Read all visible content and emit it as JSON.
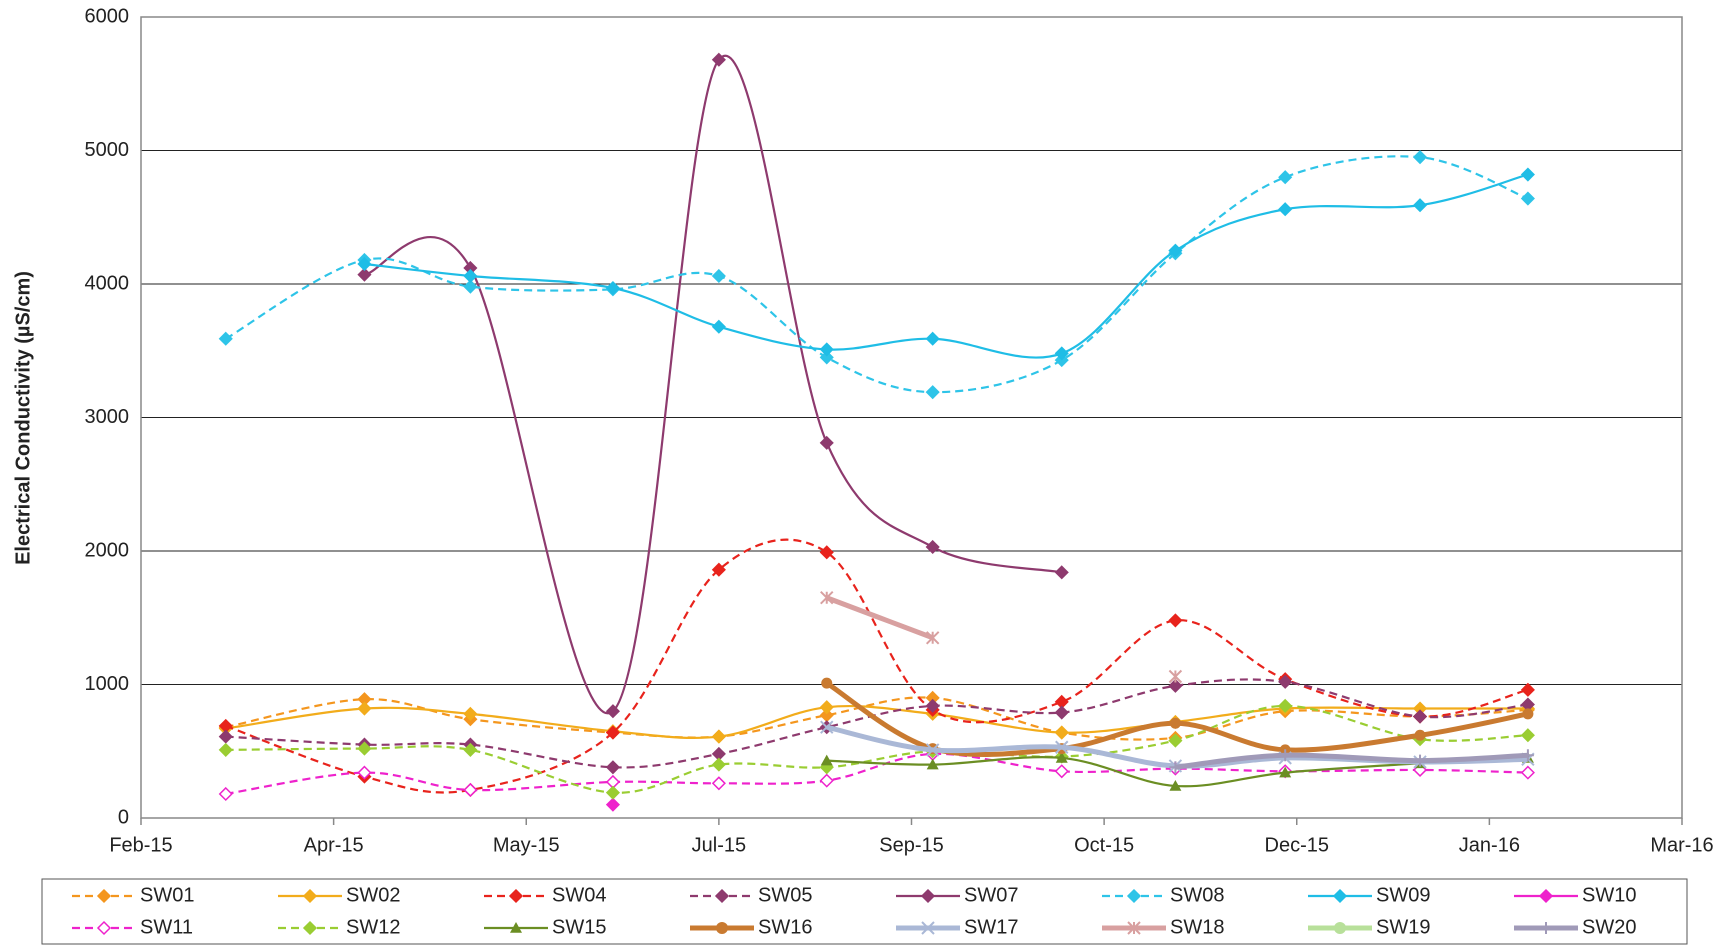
{
  "chart_data": {
    "type": "line",
    "y_label": "Electrical Conductivity (µS/cm)",
    "x": [
      0.44,
      1.16,
      1.71,
      2.45,
      3.0,
      3.56,
      4.11,
      4.78,
      5.37,
      5.94,
      6.64,
      7.2
    ],
    "xlim": [
      0,
      8
    ],
    "xticks": [
      {
        "value": 0,
        "label": "Feb-15"
      },
      {
        "value": 1,
        "label": "Apr-15"
      },
      {
        "value": 2,
        "label": "May-15"
      },
      {
        "value": 3,
        "label": "Jul-15"
      },
      {
        "value": 4,
        "label": "Sep-15"
      },
      {
        "value": 5,
        "label": "Oct-15"
      },
      {
        "value": 6,
        "label": "Dec-15"
      },
      {
        "value": 7,
        "label": "Jan-16"
      },
      {
        "value": 8,
        "label": "Mar-16"
      }
    ],
    "ylim": [
      0,
      6000
    ],
    "yticks": [
      0,
      1000,
      2000,
      3000,
      4000,
      5000,
      6000
    ],
    "grid": true,
    "legend": "bottom",
    "series": [
      {
        "name": "SW01",
        "color": "#f4961e",
        "dash": true,
        "marker": "diamond",
        "values": [
          680,
          890,
          740,
          640,
          610,
          770,
          900,
          640,
          600,
          800,
          760,
          810
        ]
      },
      {
        "name": "SW02",
        "color": "#f2ac1b",
        "dash": false,
        "marker": "diamond",
        "values": [
          670,
          820,
          780,
          650,
          610,
          830,
          780,
          640,
          720,
          820,
          820,
          820
        ]
      },
      {
        "name": "SW04",
        "color": "#e8231c",
        "dash": true,
        "marker": "diamond",
        "values": [
          690,
          310,
          210,
          640,
          1860,
          1990,
          810,
          870,
          1480,
          1040,
          760,
          960
        ]
      },
      {
        "name": "SW05",
        "color": "#8e3a6e",
        "dash": true,
        "marker": "diamond",
        "values": [
          610,
          550,
          550,
          380,
          480,
          680,
          840,
          790,
          990,
          1020,
          760,
          850
        ]
      },
      {
        "name": "SW07",
        "color": "#8e3a6e",
        "dash": false,
        "marker": "diamond",
        "values": [
          null,
          4070,
          4120,
          800,
          5680,
          2810,
          2030,
          1840,
          null,
          null,
          null,
          null
        ]
      },
      {
        "name": "SW08",
        "color": "#2ec4e8",
        "dash": true,
        "marker": "diamond",
        "values": [
          3590,
          4180,
          3980,
          3960,
          4060,
          3450,
          3190,
          3430,
          4230,
          4800,
          4950,
          4640
        ]
      },
      {
        "name": "SW09",
        "color": "#1fbde6",
        "dash": false,
        "marker": "diamond",
        "values": [
          null,
          4150,
          4060,
          3970,
          3680,
          3510,
          3590,
          3480,
          4250,
          4560,
          4590,
          4820
        ]
      },
      {
        "name": "SW10",
        "color": "#ee22cc",
        "dash": false,
        "marker": "diamond",
        "values": [
          null,
          null,
          null,
          100,
          null,
          null,
          null,
          null,
          null,
          null,
          null,
          null
        ]
      },
      {
        "name": "SW11",
        "color": "#ee22cc",
        "dash": true,
        "marker": "open-diamond",
        "values": [
          180,
          340,
          210,
          270,
          260,
          280,
          480,
          350,
          370,
          350,
          360,
          340
        ]
      },
      {
        "name": "SW12",
        "color": "#9acd32",
        "dash": true,
        "marker": "diamond",
        "values": [
          510,
          520,
          510,
          190,
          400,
          380,
          500,
          460,
          580,
          840,
          590,
          620
        ]
      },
      {
        "name": "SW15",
        "color": "#6b8e23",
        "dash": false,
        "marker": "triangle",
        "values": [
          null,
          null,
          null,
          null,
          null,
          430,
          400,
          450,
          240,
          340,
          410,
          450
        ]
      },
      {
        "name": "SW16",
        "color": "#c97a30",
        "dash": false,
        "marker": "circle",
        "values": [
          null,
          null,
          null,
          null,
          null,
          1010,
          520,
          520,
          710,
          510,
          620,
          780
        ]
      },
      {
        "name": "SW17",
        "color": "#aab8d6",
        "dash": false,
        "marker": "x",
        "values": [
          null,
          null,
          null,
          null,
          null,
          680,
          510,
          530,
          390,
          450,
          420,
          440
        ]
      },
      {
        "name": "SW18",
        "color": "#d8a0a0",
        "dash": false,
        "marker": "star",
        "values": [
          null,
          null,
          null,
          null,
          null,
          1650,
          1350,
          null,
          1060,
          null,
          null,
          null
        ]
      },
      {
        "name": "SW19",
        "color": "#b8e09a",
        "dash": false,
        "marker": "circle",
        "values": [
          null,
          null,
          null,
          null,
          null,
          null,
          null,
          null,
          null,
          null,
          null,
          null
        ]
      },
      {
        "name": "SW20",
        "color": "#a09ab8",
        "dash": false,
        "marker": "plus",
        "values": [
          null,
          null,
          null,
          null,
          null,
          null,
          null,
          null,
          380,
          470,
          430,
          470
        ]
      }
    ]
  }
}
